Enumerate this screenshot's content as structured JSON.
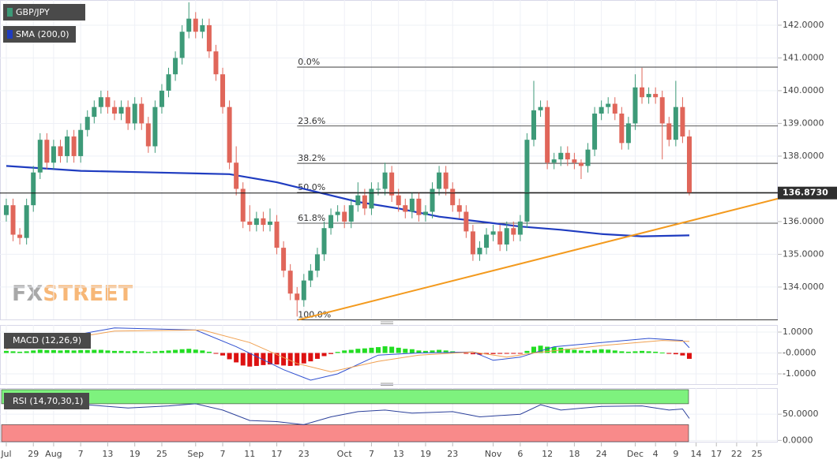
{
  "chart_data": {
    "type": "candlestick",
    "title": "GBP/JPY",
    "colors": {
      "up": "#3d9a78",
      "down": "#e0665a"
    },
    "ohlc": [
      [
        136.2,
        136.7,
        136.0,
        136.5
      ],
      [
        136.5,
        136.7,
        135.4,
        135.6
      ],
      [
        135.6,
        135.8,
        135.3,
        135.5
      ],
      [
        135.5,
        136.7,
        135.3,
        136.5
      ],
      [
        136.5,
        137.7,
        136.3,
        137.5
      ],
      [
        137.5,
        138.7,
        137.3,
        138.5
      ],
      [
        138.5,
        138.7,
        137.6,
        137.8
      ],
      [
        137.8,
        138.5,
        137.6,
        138.3
      ],
      [
        138.3,
        138.5,
        137.8,
        138.0
      ],
      [
        138.0,
        138.8,
        137.8,
        138.6
      ],
      [
        138.6,
        138.8,
        137.8,
        138.0
      ],
      [
        138.0,
        139.0,
        137.8,
        138.8
      ],
      [
        138.8,
        139.4,
        138.6,
        139.2
      ],
      [
        139.2,
        139.7,
        139.0,
        139.5
      ],
      [
        139.5,
        140.0,
        139.3,
        139.8
      ],
      [
        139.8,
        140.0,
        139.3,
        139.5
      ],
      [
        139.5,
        139.7,
        139.1,
        139.3
      ],
      [
        139.3,
        139.7,
        139.1,
        139.5
      ],
      [
        139.5,
        139.7,
        138.8,
        139.0
      ],
      [
        139.0,
        139.8,
        138.8,
        139.6
      ],
      [
        139.6,
        139.8,
        138.8,
        139.0
      ],
      [
        139.0,
        139.2,
        138.1,
        138.3
      ],
      [
        138.3,
        139.7,
        138.1,
        139.5
      ],
      [
        139.5,
        140.2,
        139.3,
        140.0
      ],
      [
        140.0,
        140.7,
        139.8,
        140.5
      ],
      [
        140.5,
        141.2,
        140.3,
        141.0
      ],
      [
        141.0,
        142.0,
        140.8,
        141.8
      ],
      [
        141.8,
        142.7,
        141.6,
        142.2
      ],
      [
        142.2,
        142.4,
        141.6,
        141.8
      ],
      [
        141.8,
        142.2,
        141.6,
        142.0
      ],
      [
        142.0,
        142.2,
        141.0,
        141.2
      ],
      [
        141.2,
        141.4,
        140.3,
        140.5
      ],
      [
        140.5,
        140.7,
        139.3,
        139.5
      ],
      [
        139.5,
        139.7,
        137.6,
        137.8
      ],
      [
        137.8,
        138.3,
        136.8,
        137.0
      ],
      [
        137.0,
        137.2,
        135.8,
        136.0
      ],
      [
        136.0,
        136.5,
        135.7,
        135.9
      ],
      [
        135.9,
        136.3,
        135.7,
        136.1
      ],
      [
        136.1,
        136.3,
        135.7,
        135.9
      ],
      [
        135.9,
        136.4,
        135.7,
        136.0
      ],
      [
        136.0,
        136.2,
        135.0,
        135.2
      ],
      [
        135.2,
        135.4,
        134.3,
        134.5
      ],
      [
        134.5,
        134.7,
        133.6,
        133.8
      ],
      [
        133.8,
        134.0,
        133.1,
        133.6
      ],
      [
        133.6,
        134.4,
        133.4,
        134.2
      ],
      [
        134.2,
        134.7,
        134.0,
        134.5
      ],
      [
        134.5,
        135.2,
        134.3,
        135.0
      ],
      [
        135.0,
        136.0,
        134.8,
        135.8
      ],
      [
        135.8,
        136.4,
        135.6,
        136.2
      ],
      [
        136.2,
        136.5,
        136.0,
        136.3
      ],
      [
        136.3,
        136.5,
        135.8,
        136.0
      ],
      [
        136.0,
        136.7,
        135.8,
        136.5
      ],
      [
        136.5,
        137.2,
        136.3,
        136.8
      ],
      [
        136.8,
        137.0,
        136.2,
        136.4
      ],
      [
        136.4,
        137.2,
        136.2,
        137.0
      ],
      [
        137.0,
        137.2,
        136.8,
        137.0
      ],
      [
        137.0,
        137.8,
        136.8,
        137.5
      ],
      [
        137.5,
        137.7,
        136.6,
        136.8
      ],
      [
        136.8,
        137.0,
        136.3,
        136.5
      ],
      [
        136.5,
        136.7,
        136.1,
        136.3
      ],
      [
        136.3,
        136.9,
        136.1,
        136.7
      ],
      [
        136.7,
        136.9,
        136.0,
        136.2
      ],
      [
        136.2,
        136.5,
        136.0,
        136.3
      ],
      [
        136.3,
        137.2,
        136.1,
        137.0
      ],
      [
        137.0,
        137.7,
        136.8,
        137.5
      ],
      [
        137.5,
        137.7,
        136.8,
        137.0
      ],
      [
        137.0,
        137.2,
        136.3,
        136.5
      ],
      [
        136.5,
        136.7,
        136.1,
        136.3
      ],
      [
        136.3,
        136.5,
        135.5,
        135.7
      ],
      [
        135.7,
        135.9,
        134.8,
        135.0
      ],
      [
        135.0,
        135.4,
        134.8,
        135.2
      ],
      [
        135.2,
        135.8,
        135.0,
        135.6
      ],
      [
        135.6,
        135.9,
        135.4,
        135.7
      ],
      [
        135.7,
        135.9,
        135.1,
        135.3
      ],
      [
        135.3,
        136.0,
        135.1,
        135.8
      ],
      [
        135.8,
        136.0,
        135.4,
        135.6
      ],
      [
        135.6,
        136.2,
        135.4,
        136.0
      ],
      [
        136.0,
        138.7,
        135.8,
        138.5
      ],
      [
        138.5,
        140.3,
        138.3,
        139.4
      ],
      [
        139.4,
        139.7,
        139.2,
        139.5
      ],
      [
        139.5,
        139.7,
        137.6,
        137.8
      ],
      [
        137.8,
        138.1,
        137.6,
        137.9
      ],
      [
        137.9,
        138.3,
        137.7,
        138.1
      ],
      [
        138.1,
        138.3,
        137.7,
        137.9
      ],
      [
        137.9,
        138.1,
        137.6,
        137.8
      ],
      [
        137.8,
        137.9,
        137.3,
        137.7
      ],
      [
        137.7,
        138.4,
        137.5,
        138.2
      ],
      [
        138.2,
        139.5,
        138.0,
        139.3
      ],
      [
        139.3,
        139.7,
        139.1,
        139.5
      ],
      [
        139.5,
        139.8,
        139.3,
        139.6
      ],
      [
        139.6,
        139.8,
        139.1,
        139.3
      ],
      [
        139.3,
        139.5,
        138.2,
        138.4
      ],
      [
        138.4,
        139.2,
        138.2,
        139.0
      ],
      [
        139.0,
        140.5,
        138.8,
        140.1
      ],
      [
        140.1,
        140.7,
        139.6,
        139.8
      ],
      [
        139.8,
        140.1,
        139.6,
        139.9
      ],
      [
        139.9,
        140.1,
        139.6,
        139.8
      ],
      [
        139.8,
        140.0,
        137.9,
        139.0
      ],
      [
        139.0,
        139.2,
        138.3,
        138.5
      ],
      [
        138.5,
        140.3,
        138.3,
        139.5
      ],
      [
        139.5,
        139.8,
        138.4,
        138.6
      ],
      [
        138.6,
        138.8,
        136.8,
        136.873
      ]
    ],
    "xlim": [
      -0.93,
      114.08
    ],
    "xticks": [
      {
        "value": 0,
        "label": "Jul"
      },
      {
        "value": 4,
        "label": "29"
      },
      {
        "value": 7,
        "label": "Aug"
      },
      {
        "value": 11,
        "label": "7"
      },
      {
        "value": 15,
        "label": "13"
      },
      {
        "value": 19,
        "label": "19"
      },
      {
        "value": 23,
        "label": "25"
      },
      {
        "value": 28,
        "label": "Sep"
      },
      {
        "value": 32,
        "label": "7"
      },
      {
        "value": 36,
        "label": "11"
      },
      {
        "value": 40,
        "label": "17"
      },
      {
        "value": 44,
        "label": "23"
      },
      {
        "value": 50,
        "label": "Oct"
      },
      {
        "value": 54,
        "label": "7"
      },
      {
        "value": 58,
        "label": "13"
      },
      {
        "value": 62,
        "label": "19"
      },
      {
        "value": 66,
        "label": "23"
      },
      {
        "value": 72,
        "label": "Nov"
      },
      {
        "value": 76,
        "label": "6"
      },
      {
        "value": 80,
        "label": "12"
      },
      {
        "value": 84,
        "label": "18"
      },
      {
        "value": 88,
        "label": "24"
      },
      {
        "value": 93,
        "label": "Dec"
      },
      {
        "value": 96,
        "label": "4"
      },
      {
        "value": 99,
        "label": "9"
      },
      {
        "value": 102,
        "label": "14"
      },
      {
        "value": 105,
        "label": "17"
      },
      {
        "value": 108,
        "label": "22"
      },
      {
        "value": 111,
        "label": "25"
      }
    ],
    "ylim": [
      133.01,
      142.77
    ],
    "yticks": [
      {
        "value": 142,
        "label": "142.0000"
      },
      {
        "value": 141,
        "label": "141.0000"
      },
      {
        "value": 140,
        "label": "140.0000"
      },
      {
        "value": 139,
        "label": "139.0000"
      },
      {
        "value": 138,
        "label": "138.0000"
      },
      {
        "value": 136,
        "label": "136.0000"
      },
      {
        "value": 135,
        "label": "135.0000"
      },
      {
        "value": 134,
        "label": "134.0000"
      }
    ],
    "grid": true,
    "last_price": {
      "value": 136.873,
      "label": "136.8730"
    },
    "sma": {
      "name": "SMA (200,0)",
      "color": "#1f3cc0",
      "x": [
        0,
        11,
        22,
        33,
        40,
        46,
        52,
        58,
        64,
        70,
        76,
        82,
        88,
        94,
        101
      ],
      "values": [
        137.7,
        137.55,
        137.5,
        137.45,
        137.2,
        136.9,
        136.6,
        136.4,
        136.15,
        136.0,
        135.85,
        135.75,
        135.62,
        135.55,
        135.58
      ]
    },
    "trendline": {
      "color": "#f39a1e",
      "x": [
        43.2,
        114.08
      ],
      "values": [
        133.0,
        136.7
      ]
    },
    "fibonacci": [
      {
        "label": "0.0%",
        "value": 140.72
      },
      {
        "label": "23.6%",
        "value": 138.92
      },
      {
        "label": "38.2%",
        "value": 137.78
      },
      {
        "label": "50.0%",
        "value": 136.89
      },
      {
        "label": "61.8%",
        "value": 135.95
      },
      {
        "label": "100.0%",
        "value": 133.0
      }
    ],
    "watermark": [
      "FX",
      "STREET"
    ],
    "macd": {
      "name": "MACD (12,26,9)",
      "ylim": [
        -1.49,
        1.34
      ],
      "yticks": [
        {
          "value": 1,
          "label": "1.0000"
        },
        {
          "value": 0,
          "label": "-0.0000"
        },
        {
          "value": -1,
          "label": "-1.0000"
        }
      ],
      "colors": {
        "up": "#22dd22",
        "down": "#dd1111"
      },
      "histogram": [
        0.1,
        0.08,
        0.06,
        0.08,
        0.12,
        0.16,
        0.14,
        0.14,
        0.12,
        0.14,
        0.12,
        0.14,
        0.14,
        0.15,
        0.15,
        0.12,
        0.1,
        0.1,
        0.08,
        0.1,
        0.08,
        0.05,
        0.08,
        0.1,
        0.12,
        0.15,
        0.18,
        0.2,
        0.16,
        0.12,
        0.06,
        -0.02,
        -0.12,
        -0.3,
        -0.45,
        -0.6,
        -0.65,
        -0.62,
        -0.58,
        -0.55,
        -0.55,
        -0.6,
        -0.62,
        -0.6,
        -0.5,
        -0.4,
        -0.28,
        -0.15,
        -0.05,
        0.05,
        0.12,
        0.15,
        0.2,
        0.22,
        0.25,
        0.28,
        0.32,
        0.3,
        0.25,
        0.2,
        0.18,
        0.12,
        0.1,
        0.12,
        0.15,
        0.12,
        0.08,
        0.04,
        -0.02,
        -0.06,
        -0.08,
        -0.06,
        -0.05,
        -0.04,
        -0.03,
        -0.02,
        -0.02,
        0.1,
        0.3,
        0.35,
        0.3,
        0.28,
        0.25,
        0.2,
        0.15,
        0.12,
        0.1,
        0.15,
        0.18,
        0.16,
        0.12,
        0.08,
        0.06,
        0.08,
        0.1,
        0.08,
        0.06,
        0.02,
        -0.04,
        -0.06,
        -0.12,
        -0.28
      ],
      "macd_line": {
        "color": "#3050d0",
        "x": [
          0,
          16,
          28,
          34,
          41,
          45,
          49,
          55,
          61,
          69,
          72,
          76,
          81,
          88,
          95,
          100,
          101
        ],
        "values": [
          0.26,
          1.2,
          1.1,
          0.3,
          -0.8,
          -1.3,
          -1.0,
          -0.1,
          0.0,
          0.05,
          -0.35,
          -0.2,
          0.3,
          0.5,
          0.7,
          0.6,
          0.25
        ]
      },
      "signal_line": {
        "color": "#f0a050",
        "x": [
          0,
          16,
          29,
          36,
          43,
          48,
          55,
          61,
          69,
          74,
          78,
          88,
          97,
          101
        ],
        "values": [
          0.2,
          1.05,
          1.1,
          0.5,
          -0.5,
          -0.9,
          -0.4,
          -0.1,
          0.05,
          -0.2,
          0.0,
          0.35,
          0.6,
          0.55
        ]
      }
    },
    "rsi": {
      "name": "RSI (14,70,30,1)",
      "ylim": [
        -4,
        100
      ],
      "yticks": [
        {
          "value": 50,
          "label": "50.0000"
        },
        {
          "value": 0,
          "label": "0.0000"
        }
      ],
      "overbought": 70,
      "oversold": 30,
      "band_colors": {
        "overbought": "#7ef27e",
        "oversold": "#f88a8a"
      },
      "color": "#2a3f9a",
      "x": [
        0,
        6,
        12,
        18,
        24,
        28,
        32,
        36,
        40,
        44,
        48,
        52,
        56,
        60,
        66,
        70,
        76,
        79,
        82,
        88,
        94,
        98,
        100,
        101
      ],
      "values": [
        65,
        70,
        68,
        62,
        66,
        70,
        58,
        38,
        36,
        30,
        45,
        55,
        58,
        52,
        55,
        45,
        50,
        68,
        58,
        65,
        66,
        58,
        60,
        42
      ]
    }
  }
}
